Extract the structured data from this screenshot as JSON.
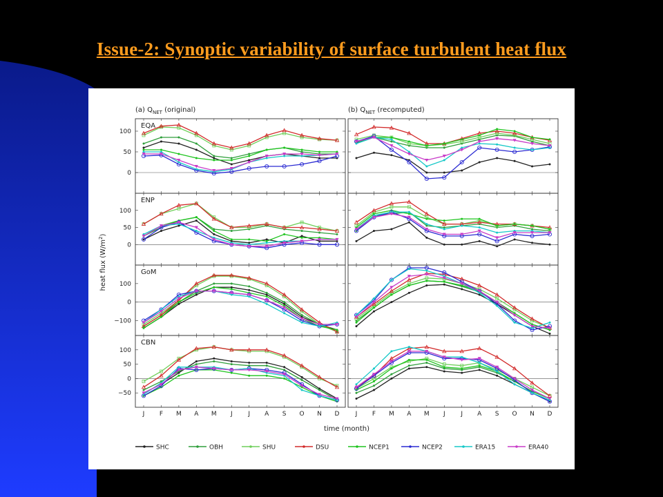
{
  "slide": {
    "title": "Issue-2: Synoptic variability of surface turbulent heat flux"
  },
  "colors": {
    "SHC": "#222222",
    "OBH": "#2e9e3a",
    "SHU": "#6fcf5a",
    "DSU": "#d22a2a",
    "NCEP1": "#1ec41e",
    "NCEP2": "#2a2ad2",
    "ERA15": "#16c8c8",
    "ERA40": "#c83cc8"
  },
  "chart_data": {
    "type": "line",
    "columns": [
      "(a) Q",
      "(b) Q"
    ],
    "column_subscript": "NET",
    "column_suffix": [
      " (original)",
      " (recomputed)"
    ],
    "ylabel": "heat flux (W/m",
    "ylabel_sup": "2",
    "ylabel_end": ")",
    "xlabel": "time (month)",
    "months": [
      "J",
      "F",
      "M",
      "A",
      "M",
      "J",
      "J",
      "A",
      "S",
      "O",
      "N",
      "D"
    ],
    "series_names": [
      "SHC",
      "OBH",
      "SHU",
      "DSU",
      "NCEP1",
      "NCEP2",
      "ERA15",
      "ERA40"
    ],
    "rows": [
      {
        "name": "EQA",
        "ylim": [
          -50,
          130
        ],
        "yticks": [
          0,
          50,
          100
        ],
        "panels": [
          {
            "SHC": [
              60,
              75,
              70,
              55,
              35,
              20,
              30,
              40,
              45,
              40,
              35,
              35
            ],
            "OBH": [
              70,
              85,
              85,
              70,
              40,
              35,
              45,
              55,
              60,
              50,
              45,
              45
            ],
            "SHU": [
              90,
              110,
              108,
              90,
              65,
              55,
              65,
              85,
              95,
              85,
              80,
              78
            ],
            "DSU": [
              95,
              112,
              115,
              95,
              70,
              60,
              70,
              90,
              102,
              90,
              82,
              78
            ],
            "NCEP1": [
              55,
              55,
              45,
              35,
              30,
              30,
              40,
              55,
              60,
              55,
              50,
              50
            ],
            "NCEP2": [
              40,
              42,
              20,
              5,
              -2,
              2,
              10,
              15,
              15,
              20,
              28,
              40
            ],
            "ERA15": [
              50,
              50,
              25,
              8,
              2,
              8,
              25,
              35,
              40,
              40,
              42,
              45
            ],
            "ERA40": [
              45,
              45,
              30,
              15,
              5,
              10,
              25,
              40,
              45,
              45,
              42,
              45
            ]
          },
          {
            "SHC": [
              35,
              48,
              42,
              30,
              0,
              0,
              5,
              25,
              35,
              28,
              15,
              20
            ],
            "OBH": [
              72,
              85,
              75,
              65,
              60,
              60,
              70,
              80,
              90,
              88,
              75,
              65
            ],
            "SHU": [
              80,
              90,
              85,
              70,
              65,
              68,
              75,
              85,
              95,
              90,
              80,
              70
            ],
            "DSU": [
              92,
              110,
              108,
              95,
              70,
              70,
              82,
              95,
              100,
              95,
              85,
              78
            ],
            "NCEP1": [
              75,
              85,
              85,
              75,
              65,
              70,
              80,
              90,
              105,
              100,
              85,
              80
            ],
            "NCEP2": [
              75,
              88,
              55,
              25,
              -15,
              -12,
              25,
              60,
              55,
              50,
              55,
              62
            ],
            "ERA15": [
              70,
              85,
              80,
              50,
              15,
              30,
              60,
              70,
              68,
              60,
              55,
              60
            ],
            "ERA40": [
              75,
              85,
              65,
              45,
              30,
              40,
              55,
              75,
              82,
              78,
              70,
              65
            ]
          }
        ]
      },
      {
        "name": "ENP",
        "ylim": [
          -60,
          150
        ],
        "yticks": [
          0,
          50,
          100
        ],
        "panels": [
          {
            "SHC": [
              15,
              40,
              55,
              70,
              30,
              10,
              5,
              15,
              5,
              25,
              10,
              10
            ],
            "OBH": [
              25,
              50,
              70,
              80,
              45,
              40,
              45,
              55,
              45,
              40,
              35,
              30
            ],
            "SHU": [
              60,
              90,
              105,
              120,
              80,
              50,
              50,
              60,
              50,
              65,
              50,
              40
            ],
            "DSU": [
              60,
              90,
              115,
              120,
              75,
              50,
              55,
              60,
              50,
              50,
              45,
              40
            ],
            "NCEP1": [
              25,
              55,
              70,
              80,
              40,
              15,
              15,
              10,
              30,
              20,
              20,
              15
            ],
            "NCEP2": [
              15,
              50,
              65,
              35,
              10,
              0,
              -5,
              -10,
              0,
              5,
              0,
              0
            ],
            "ERA15": [
              30,
              55,
              60,
              40,
              20,
              5,
              0,
              5,
              10,
              10,
              15,
              15
            ],
            "ERA40": [
              25,
              55,
              65,
              50,
              15,
              0,
              -5,
              -5,
              5,
              10,
              15,
              15
            ]
          },
          {
            "SHC": [
              10,
              40,
              45,
              65,
              20,
              0,
              0,
              10,
              -5,
              15,
              5,
              0
            ],
            "OBH": [
              40,
              85,
              90,
              95,
              55,
              50,
              55,
              60,
              50,
              55,
              45,
              40
            ],
            "SHU": [
              55,
              95,
              110,
              110,
              80,
              60,
              60,
              70,
              55,
              60,
              55,
              45
            ],
            "DSU": [
              65,
              100,
              120,
              125,
              90,
              60,
              60,
              65,
              60,
              60,
              55,
              50
            ],
            "NCEP1": [
              50,
              90,
              100,
              90,
              75,
              70,
              75,
              75,
              55,
              60,
              55,
              45
            ],
            "NCEP2": [
              40,
              80,
              95,
              75,
              40,
              25,
              25,
              30,
              10,
              30,
              25,
              30
            ],
            "ERA15": [
              45,
              85,
              95,
              95,
              60,
              45,
              55,
              50,
              35,
              40,
              40,
              35
            ],
            "ERA40": [
              45,
              80,
              90,
              80,
              45,
              30,
              30,
              40,
              20,
              35,
              35,
              35
            ]
          }
        ]
      },
      {
        "name": "GoM",
        "ylim": [
          -180,
          200
        ],
        "yticks": [
          -100,
          0,
          100
        ],
        "panels": [
          {
            "SHC": [
              -140,
              -80,
              -10,
              40,
              80,
              80,
              65,
              40,
              -10,
              -80,
              -120,
              -150
            ],
            "OBH": [
              -130,
              -70,
              0,
              60,
              100,
              100,
              85,
              50,
              0,
              -70,
              -120,
              -160
            ],
            "SHU": [
              -120,
              -60,
              10,
              90,
              140,
              140,
              125,
              90,
              30,
              -50,
              -120,
              -160
            ],
            "DSU": [
              -130,
              -70,
              10,
              100,
              145,
              145,
              130,
              100,
              40,
              -40,
              -110,
              -160
            ],
            "NCEP1": [
              -140,
              -80,
              0,
              50,
              80,
              70,
              50,
              30,
              -20,
              -90,
              -130,
              -150
            ],
            "NCEP2": [
              -100,
              -40,
              40,
              60,
              60,
              50,
              40,
              10,
              -40,
              -100,
              -130,
              -120
            ],
            "ERA15": [
              -110,
              -40,
              30,
              60,
              60,
              40,
              30,
              -10,
              -60,
              -110,
              -130,
              -110
            ],
            "ERA40": [
              -110,
              -50,
              20,
              60,
              60,
              50,
              40,
              10,
              -30,
              -90,
              -120,
              -120
            ]
          },
          {
            "SHC": [
              -130,
              -50,
              0,
              50,
              90,
              95,
              70,
              40,
              -10,
              -70,
              -130,
              -170
            ],
            "OBH": [
              -100,
              -30,
              40,
              90,
              115,
              110,
              85,
              55,
              0,
              -60,
              -120,
              -150
            ],
            "SHU": [
              -90,
              -20,
              50,
              100,
              130,
              125,
              100,
              70,
              20,
              -40,
              -100,
              -140
            ],
            "DSU": [
              -80,
              -10,
              60,
              120,
              155,
              150,
              125,
              90,
              40,
              -30,
              -90,
              -140
            ],
            "NCEP1": [
              -110,
              -30,
              40,
              90,
              115,
              110,
              90,
              60,
              0,
              -60,
              -120,
              -150
            ],
            "NCEP2": [
              -70,
              10,
              120,
              185,
              185,
              160,
              110,
              60,
              -10,
              -100,
              -150,
              -130
            ],
            "ERA15": [
              -70,
              20,
              120,
              180,
              170,
              140,
              100,
              50,
              -20,
              -110,
              -140,
              -110
            ],
            "ERA40": [
              -80,
              0,
              80,
              140,
              150,
              130,
              100,
              60,
              0,
              -70,
              -130,
              -140
            ]
          }
        ]
      },
      {
        "name": "CBN",
        "ylim": [
          -100,
          150
        ],
        "yticks": [
          -50,
          0,
          50,
          100
        ],
        "panels": [
          {
            "SHC": [
              -50,
              -20,
              20,
              60,
              70,
              60,
              55,
              55,
              40,
              5,
              -35,
              -70
            ],
            "OBH": [
              -40,
              -10,
              25,
              50,
              60,
              50,
              45,
              45,
              30,
              -5,
              -40,
              -75
            ],
            "SHU": [
              -10,
              25,
              70,
              100,
              110,
              100,
              95,
              95,
              75,
              40,
              0,
              -25
            ],
            "DSU": [
              -30,
              10,
              65,
              105,
              110,
              100,
              100,
              100,
              80,
              45,
              5,
              -30
            ],
            "NCEP1": [
              -60,
              -30,
              10,
              30,
              30,
              20,
              10,
              10,
              0,
              -30,
              -60,
              -80
            ],
            "NCEP2": [
              -60,
              -25,
              35,
              30,
              35,
              30,
              35,
              30,
              20,
              -20,
              -60,
              -75
            ],
            "ERA15": [
              -55,
              -15,
              40,
              40,
              40,
              30,
              35,
              20,
              10,
              -40,
              -60,
              -75
            ],
            "ERA40": [
              -50,
              -20,
              30,
              40,
              35,
              30,
              30,
              25,
              15,
              -25,
              -55,
              -70
            ]
          },
          {
            "SHC": [
              -70,
              -40,
              0,
              35,
              40,
              25,
              20,
              30,
              10,
              -20,
              -50,
              -80
            ],
            "OBH": [
              -50,
              -25,
              15,
              45,
              55,
              35,
              30,
              40,
              20,
              -10,
              -45,
              -70
            ],
            "SHU": [
              -35,
              0,
              40,
              60,
              70,
              50,
              45,
              55,
              30,
              0,
              -30,
              -60
            ],
            "DSU": [
              -30,
              10,
              70,
              105,
              110,
              95,
              95,
              105,
              75,
              35,
              -15,
              -60
            ],
            "NCEP1": [
              -40,
              -10,
              35,
              65,
              65,
              40,
              35,
              45,
              25,
              -10,
              -45,
              -70
            ],
            "NCEP2": [
              -35,
              10,
              55,
              90,
              90,
              70,
              70,
              65,
              35,
              -5,
              -50,
              -80
            ],
            "ERA15": [
              -20,
              35,
              95,
              110,
              95,
              75,
              75,
              55,
              25,
              -20,
              -50,
              -75
            ],
            "ERA40": [
              -30,
              15,
              60,
              95,
              95,
              75,
              65,
              70,
              40,
              0,
              -40,
              -70
            ]
          }
        ]
      }
    ]
  }
}
